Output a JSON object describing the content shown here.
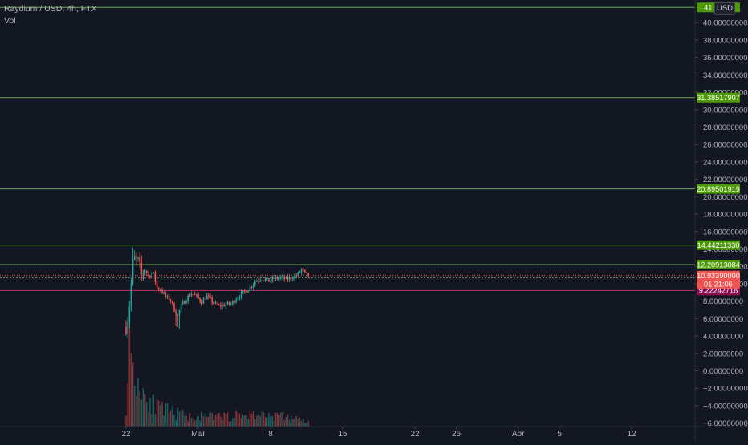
{
  "legend": {
    "symbol": "Raydium / USD, 4h, FTX",
    "volume": "Vol"
  },
  "currency_button": "USD",
  "colors": {
    "background": "#131722",
    "up": "#26a69a",
    "down": "#ef5350",
    "level_line": "#6aa84f",
    "level_label": "#4e9a06",
    "price_label": "#ef5350",
    "support_label": "#880e4f",
    "axis_text": "#b2b5be"
  },
  "chart_data": {
    "type": "candlestick",
    "title": "Raydium / USD, 4h, FTX",
    "xlabel": "",
    "ylabel": "",
    "ylim": [
      -6.4,
      42.6
    ],
    "y_ticks": [
      "40.00000000",
      "38.00000000",
      "36.00000000",
      "34.00000000",
      "32.00000000",
      "30.00000000",
      "28.00000000",
      "26.00000000",
      "24.00000000",
      "22.00000000",
      "20.00000000",
      "18.00000000",
      "16.00000000",
      "14.00000000",
      "12.00000000",
      "10.00000000",
      "8.00000000",
      "6.00000000",
      "4.00000000",
      "2.00000000",
      "0.00000000",
      "−2.00000000",
      "−4.00000000",
      "−6.00000000"
    ],
    "y_tick_values": [
      40,
      38,
      36,
      34,
      32,
      30,
      28,
      26,
      24,
      22,
      20,
      18,
      16,
      14,
      12,
      10,
      8,
      6,
      4,
      2,
      0,
      -2,
      -4,
      -6
    ],
    "x_ticks": [
      {
        "label": "22",
        "day": 0
      },
      {
        "label": "Mar",
        "day": 7
      },
      {
        "label": "8",
        "day": 14
      },
      {
        "label": "15",
        "day": 21
      },
      {
        "label": "22",
        "day": 28
      },
      {
        "label": "26",
        "day": 32
      },
      {
        "label": "Apr",
        "day": 38
      },
      {
        "label": "5",
        "day": 42
      },
      {
        "label": "12",
        "day": 49
      }
    ],
    "horizontal_levels": [
      {
        "label": "41.7...91",
        "value": 41.75,
        "kind": "resistance"
      },
      {
        "label": "31.38517907",
        "value": 31.38517907,
        "kind": "resistance"
      },
      {
        "label": "20.89501919",
        "value": 20.89501919,
        "kind": "resistance"
      },
      {
        "label": "14.44211330",
        "value": 14.4421133,
        "kind": "resistance"
      },
      {
        "label": "12.20913084",
        "value": 12.20913084,
        "kind": "resistance"
      },
      {
        "label": "10.67395541",
        "value": 10.67395541,
        "kind": "support"
      },
      {
        "label": "9.22242716",
        "value": 9.22242716,
        "kind": "support-red"
      }
    ],
    "last_price": {
      "label": "10.93390000",
      "countdown": "01:21:06",
      "value": 10.9339
    },
    "waypoints": [
      [
        0.0,
        5.0
      ],
      [
        0.25,
        6.5
      ],
      [
        0.4,
        8.5
      ],
      [
        0.6,
        11.5
      ],
      [
        0.75,
        13.3
      ],
      [
        0.9,
        12.6
      ],
      [
        1.1,
        12.9
      ],
      [
        1.3,
        12.0
      ],
      [
        1.5,
        11.0
      ],
      [
        1.8,
        11.8
      ],
      [
        2.2,
        10.8
      ],
      [
        2.6,
        11.4
      ],
      [
        3.0,
        9.5
      ],
      [
        3.4,
        9.3
      ],
      [
        3.8,
        8.5
      ],
      [
        4.3,
        8.2
      ],
      [
        4.6,
        7.2
      ],
      [
        5.0,
        6.3
      ],
      [
        5.3,
        7.4
      ],
      [
        5.8,
        8.2
      ],
      [
        6.3,
        8.9
      ],
      [
        6.8,
        8.6
      ],
      [
        7.3,
        7.9
      ],
      [
        7.8,
        8.6
      ],
      [
        8.4,
        7.9
      ],
      [
        9.0,
        7.4
      ],
      [
        9.6,
        7.6
      ],
      [
        10.2,
        7.7
      ],
      [
        10.8,
        8.5
      ],
      [
        11.4,
        9.0
      ],
      [
        12.0,
        9.6
      ],
      [
        12.6,
        10.4
      ],
      [
        13.2,
        10.6
      ],
      [
        13.8,
        10.3
      ],
      [
        14.4,
        10.6
      ],
      [
        15.0,
        10.7
      ],
      [
        15.6,
        10.5
      ],
      [
        16.2,
        10.8
      ],
      [
        16.6,
        11.0
      ],
      [
        17.0,
        11.7
      ],
      [
        17.3,
        11.2
      ],
      [
        17.6,
        10.93
      ]
    ],
    "volume_profile": [
      [
        0.0,
        0.25
      ],
      [
        0.3,
        0.9
      ],
      [
        0.6,
        0.8
      ],
      [
        1.0,
        0.55
      ],
      [
        1.4,
        0.45
      ],
      [
        2.0,
        0.35
      ],
      [
        3.0,
        0.22
      ],
      [
        4.0,
        0.18
      ],
      [
        5.0,
        0.15
      ],
      [
        6.0,
        0.12
      ],
      [
        8.0,
        0.11
      ],
      [
        10.0,
        0.12
      ],
      [
        12.0,
        0.14
      ],
      [
        14.0,
        0.13
      ],
      [
        16.0,
        0.11
      ],
      [
        17.6,
        0.05
      ]
    ]
  }
}
